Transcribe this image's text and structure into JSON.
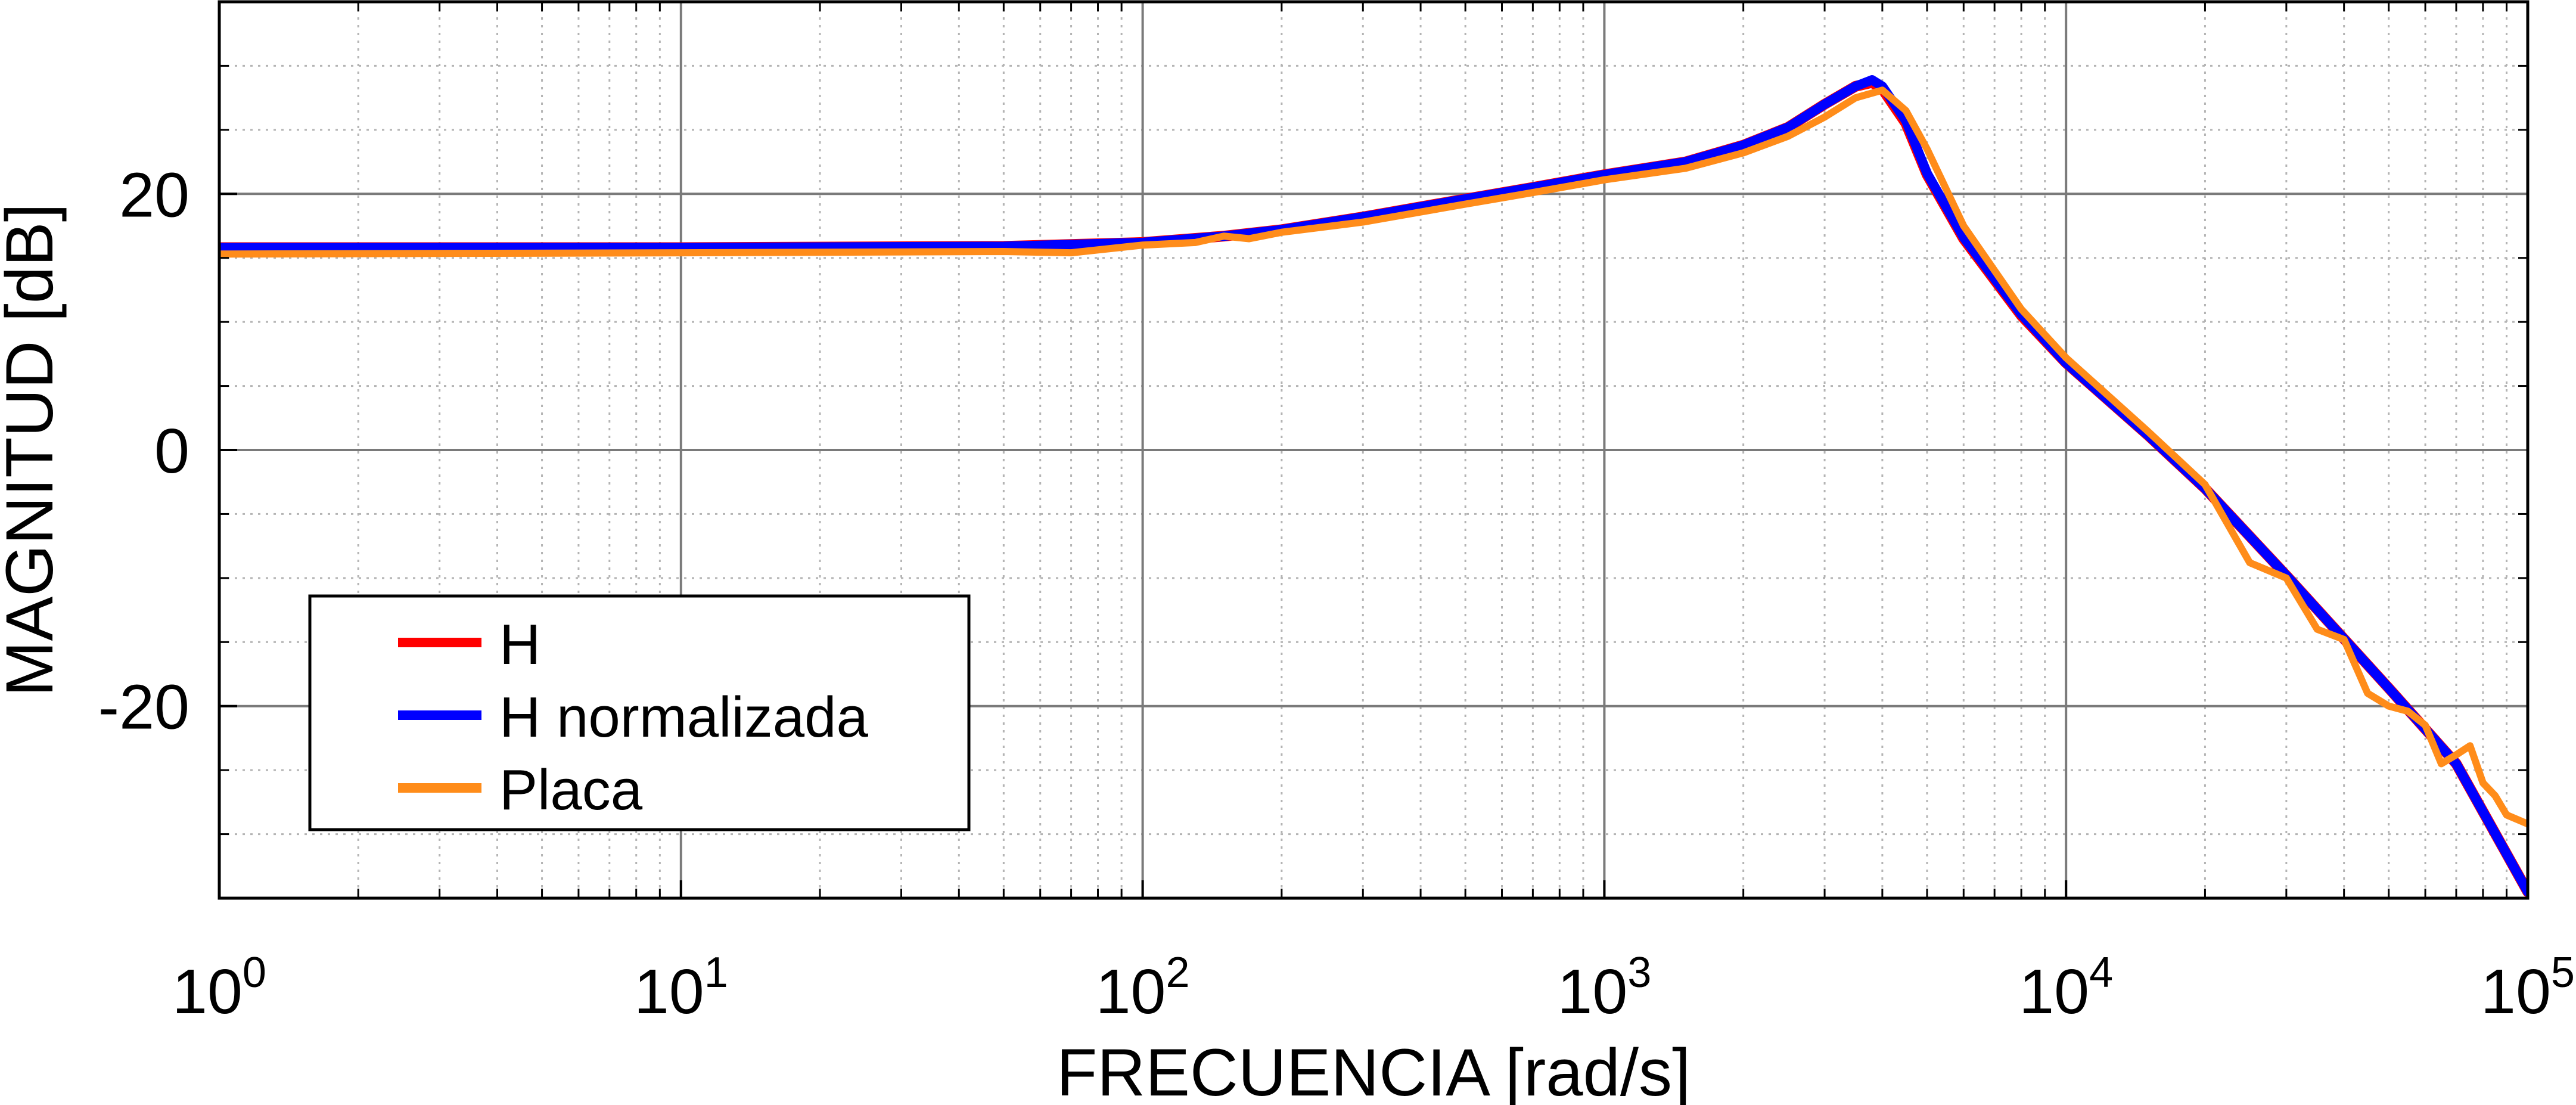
{
  "chart_data": {
    "type": "line",
    "title": "",
    "xlabel": "FRECUENCIA [rad/s]",
    "ylabel": "MAGNITUD [dB]",
    "xscale": "log",
    "xlim": [
      1,
      100000
    ],
    "ylim": [
      -35,
      35
    ],
    "grid": true,
    "legend_position": "lower-left",
    "x_ticks": [
      {
        "value": 1,
        "base": "10",
        "exp": "0"
      },
      {
        "value": 10,
        "base": "10",
        "exp": "1"
      },
      {
        "value": 100,
        "base": "10",
        "exp": "2"
      },
      {
        "value": 1000,
        "base": "10",
        "exp": "3"
      },
      {
        "value": 10000,
        "base": "10",
        "exp": "4"
      },
      {
        "value": 100000,
        "base": "10",
        "exp": "5"
      }
    ],
    "y_ticks": [
      {
        "value": 20,
        "label": "20"
      },
      {
        "value": 0,
        "label": "0"
      },
      {
        "value": -20,
        "label": "-20"
      }
    ],
    "series": [
      {
        "name": "H",
        "color": "#ff0000",
        "x": [
          1,
          10,
          50,
          100,
          150,
          200,
          300,
          500,
          700,
          1000,
          1500,
          2000,
          2500,
          3000,
          3500,
          3800,
          4000,
          4500,
          5000,
          6000,
          8000,
          10000,
          15000,
          20000,
          30000,
          50000,
          70000,
          100000
        ],
        "y": [
          15.8,
          15.8,
          15.9,
          16.2,
          16.7,
          17.2,
          18.2,
          19.6,
          20.5,
          21.5,
          22.5,
          23.8,
          25.2,
          27,
          28.4,
          28.7,
          28.2,
          25.5,
          21.5,
          16.5,
          10.5,
          6.8,
          1.2,
          -3,
          -9.8,
          -18.6,
          -24.5,
          -34.5
        ]
      },
      {
        "name": "H normalizada",
        "color": "#0000ff",
        "x": [
          1,
          10,
          50,
          100,
          150,
          200,
          300,
          500,
          700,
          1000,
          1500,
          2000,
          2500,
          3000,
          3500,
          3800,
          4000,
          4500,
          5000,
          6000,
          8000,
          10000,
          15000,
          20000,
          30000,
          50000,
          70000,
          100000
        ],
        "y": [
          15.8,
          15.8,
          15.9,
          16.2,
          16.7,
          17.2,
          18.2,
          19.6,
          20.5,
          21.5,
          22.5,
          23.8,
          25.2,
          27,
          28.4,
          28.9,
          28.4,
          25.7,
          21.6,
          16.6,
          10.6,
          6.8,
          1.2,
          -3,
          -9.8,
          -18.6,
          -24.5,
          -34.5
        ]
      },
      {
        "name": "Placa",
        "color": "#ff8c1a",
        "x": [
          1,
          10,
          50,
          70,
          100,
          130,
          150,
          170,
          200,
          300,
          500,
          700,
          1000,
          1500,
          2000,
          2500,
          3000,
          3500,
          4000,
          4500,
          5000,
          6000,
          8000,
          10000,
          15000,
          20000,
          25000,
          30000,
          35000,
          40000,
          45000,
          50000,
          55000,
          60000,
          65000,
          70000,
          75000,
          80000,
          85000,
          90000,
          100000
        ],
        "y": [
          15.3,
          15.4,
          15.5,
          15.4,
          16,
          16.2,
          16.7,
          16.5,
          17,
          17.8,
          19.2,
          20.1,
          21.1,
          22,
          23.2,
          24.5,
          26,
          27.5,
          28.1,
          26.5,
          23.5,
          17.5,
          11,
          7.2,
          1.5,
          -2.7,
          -8.8,
          -10,
          -14,
          -14.8,
          -19,
          -20,
          -20.4,
          -21.5,
          -24.5,
          -23.8,
          -23.1,
          -26,
          -27,
          -28.5,
          -29.2
        ]
      }
    ]
  }
}
